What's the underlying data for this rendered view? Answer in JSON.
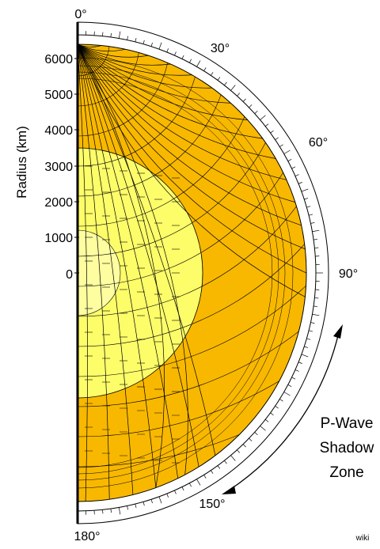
{
  "angle_labels": [
    "0°",
    "30°",
    "60°",
    "90°",
    "150°",
    "180°"
  ],
  "radius_axis": {
    "title": "Radius (km)",
    "ticks": [
      "6000",
      "5000",
      "4000",
      "3000",
      "2000",
      "1000",
      "0"
    ]
  },
  "shadow_zone_label": [
    "P-Wave",
    "Shadow",
    "Zone"
  ],
  "credit": "wiki",
  "colors": {
    "mantle": "#f8b800",
    "outer_core": "#fdfd6a",
    "inner_core": "#fefea0",
    "rays": "#000000",
    "background": "#ffffff"
  }
}
